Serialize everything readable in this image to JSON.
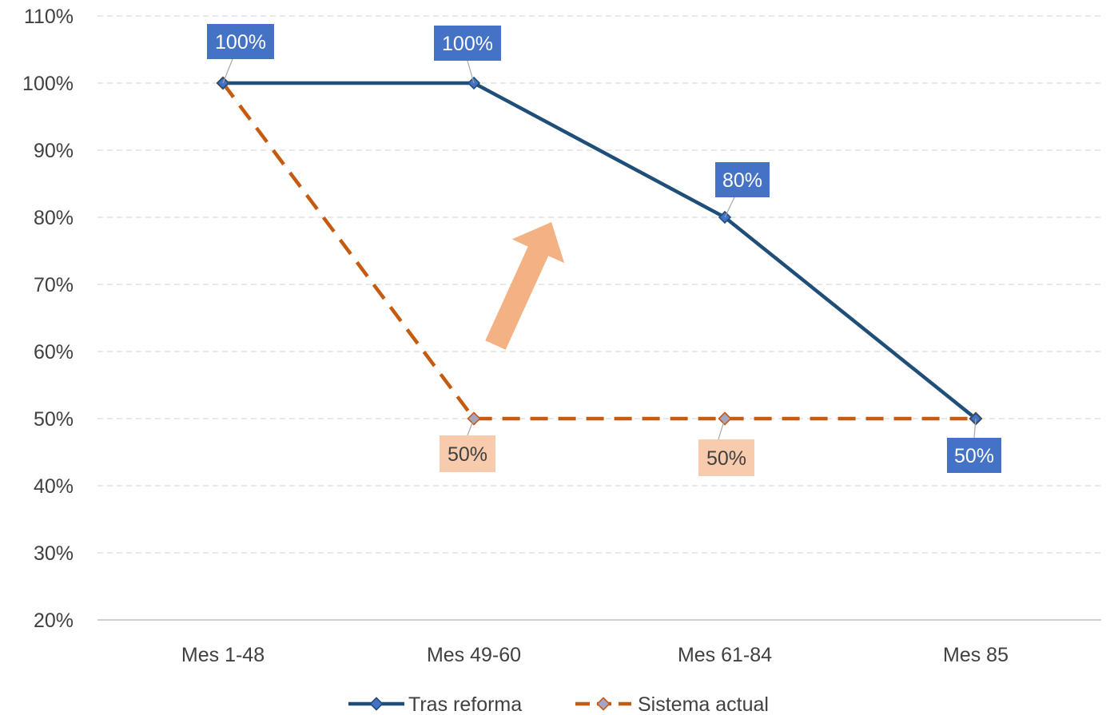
{
  "chart_data": {
    "type": "line",
    "categories": [
      "Mes 1-48",
      "Mes 49-60",
      "Mes 61-84",
      "Mes 85"
    ],
    "series": [
      {
        "name": "Tras reforma",
        "values": [
          100,
          100,
          80,
          50
        ],
        "labels": [
          "100%",
          "100%",
          "80%",
          "50%"
        ],
        "label_shown": [
          true,
          true,
          true,
          true
        ],
        "color": "#1F4E79",
        "marker_color": "#4472C4",
        "label_bg": "#4472C4",
        "label_text_color": "#FFFFFF",
        "line_style": "solid"
      },
      {
        "name": "Sistema actual",
        "values": [
          100,
          50,
          50,
          50
        ],
        "labels": [
          "100%",
          "50%",
          "50%",
          "50%"
        ],
        "label_shown": [
          false,
          true,
          true,
          false
        ],
        "color": "#C55A11",
        "marker_color": "#A5A5C8",
        "label_bg": "#F8CBAD",
        "label_text_color": "#404040",
        "line_style": "dashed"
      }
    ],
    "ylim": [
      20,
      110
    ],
    "yticks": [
      20,
      30,
      40,
      50,
      60,
      70,
      80,
      90,
      100,
      110
    ],
    "ytick_labels": [
      "20%",
      "30%",
      "40%",
      "50%",
      "60%",
      "70%",
      "80%",
      "90%",
      "100%",
      "110%"
    ],
    "y_unit": "%",
    "grid": true,
    "legend_position": "bottom",
    "annotation": {
      "type": "arrow",
      "direction": "up-right",
      "color": "#F4B183"
    }
  }
}
